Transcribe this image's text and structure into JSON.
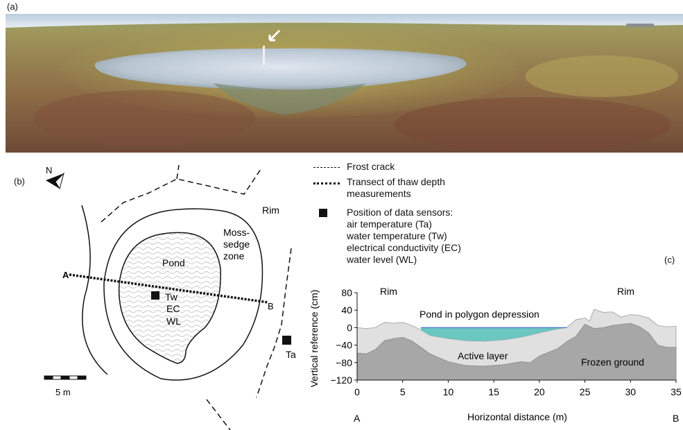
{
  "panels": {
    "a": "(a)",
    "b": "(b)",
    "c": "(c)"
  },
  "legend": {
    "frost_crack": "Frost crack",
    "transect_line1": "Transect of thaw depth",
    "transect_line2": "measurements",
    "sensors_title": "Position of data sensors:",
    "sensor_ta": "air temperature (Ta)",
    "sensor_tw": "water temperature (Tw)",
    "sensor_ec": "electrical conductivity (EC)",
    "sensor_wl": "water level (WL)"
  },
  "map": {
    "north": "N",
    "rim": "Rim",
    "moss1": "Moss-",
    "moss2": "sedge",
    "moss3": "zone",
    "pond": "Pond",
    "point_a": "A",
    "point_b": "B",
    "tw": "Tw",
    "ec": "EC",
    "wl": "WL",
    "ta": "Ta",
    "scale": "5 m"
  },
  "chart_data": {
    "type": "area",
    "xlabel": "Horizontal distance (m)",
    "ylabel": "Vertical reference (cm)",
    "xlim": [
      0,
      35
    ],
    "ylim": [
      -120,
      80
    ],
    "x_ticks": [
      0,
      5,
      10,
      15,
      20,
      25,
      30,
      35
    ],
    "y_ticks": [
      80,
      40,
      0,
      -40,
      -80,
      -120
    ],
    "end_labels": {
      "left": "A",
      "right": "B"
    },
    "annotations": {
      "rim_left": "Rim",
      "rim_right": "Rim",
      "pond": "Pond in polygon depression",
      "active_layer": "Active layer",
      "frozen_ground": "Frozen ground"
    },
    "colors": {
      "surface": "#e0e0e0",
      "frozen": "#a7a7a7",
      "water": "#6cc7c0",
      "water_line": "#5a7fd6"
    },
    "surface": [
      [
        0,
        0
      ],
      [
        1,
        -2
      ],
      [
        2,
        0
      ],
      [
        3,
        12
      ],
      [
        4,
        10
      ],
      [
        5,
        12
      ],
      [
        6,
        5
      ],
      [
        7,
        -5
      ],
      [
        8,
        -18
      ],
      [
        10,
        -25
      ],
      [
        12,
        -30
      ],
      [
        14,
        -31
      ],
      [
        16,
        -28
      ],
      [
        18,
        -22
      ],
      [
        20,
        -12
      ],
      [
        22,
        -3
      ],
      [
        23,
        0
      ],
      [
        24,
        18
      ],
      [
        25,
        22
      ],
      [
        25.5,
        15
      ],
      [
        26,
        42
      ],
      [
        27,
        35
      ],
      [
        28,
        36
      ],
      [
        29,
        24
      ],
      [
        30,
        30
      ],
      [
        31,
        28
      ],
      [
        32,
        22
      ],
      [
        33,
        5
      ],
      [
        34,
        2
      ],
      [
        35,
        3
      ]
    ],
    "frozen_top": [
      [
        0,
        -58
      ],
      [
        1,
        -60
      ],
      [
        2,
        -50
      ],
      [
        3,
        -30
      ],
      [
        4,
        -25
      ],
      [
        5,
        -22
      ],
      [
        6,
        -30
      ],
      [
        7,
        -45
      ],
      [
        8,
        -60
      ],
      [
        10,
        -78
      ],
      [
        12,
        -87
      ],
      [
        14,
        -88
      ],
      [
        16,
        -85
      ],
      [
        18,
        -78
      ],
      [
        19,
        -80
      ],
      [
        20,
        -65
      ],
      [
        22,
        -48
      ],
      [
        23,
        -32
      ],
      [
        24,
        -20
      ],
      [
        25,
        8
      ],
      [
        26,
        -2
      ],
      [
        27,
        0
      ],
      [
        28,
        5
      ],
      [
        30,
        10
      ],
      [
        31,
        2
      ],
      [
        32,
        -12
      ],
      [
        33,
        -40
      ],
      [
        34,
        -45
      ],
      [
        35,
        -45
      ]
    ],
    "water_level": 0,
    "water_x": [
      7,
      23
    ]
  }
}
